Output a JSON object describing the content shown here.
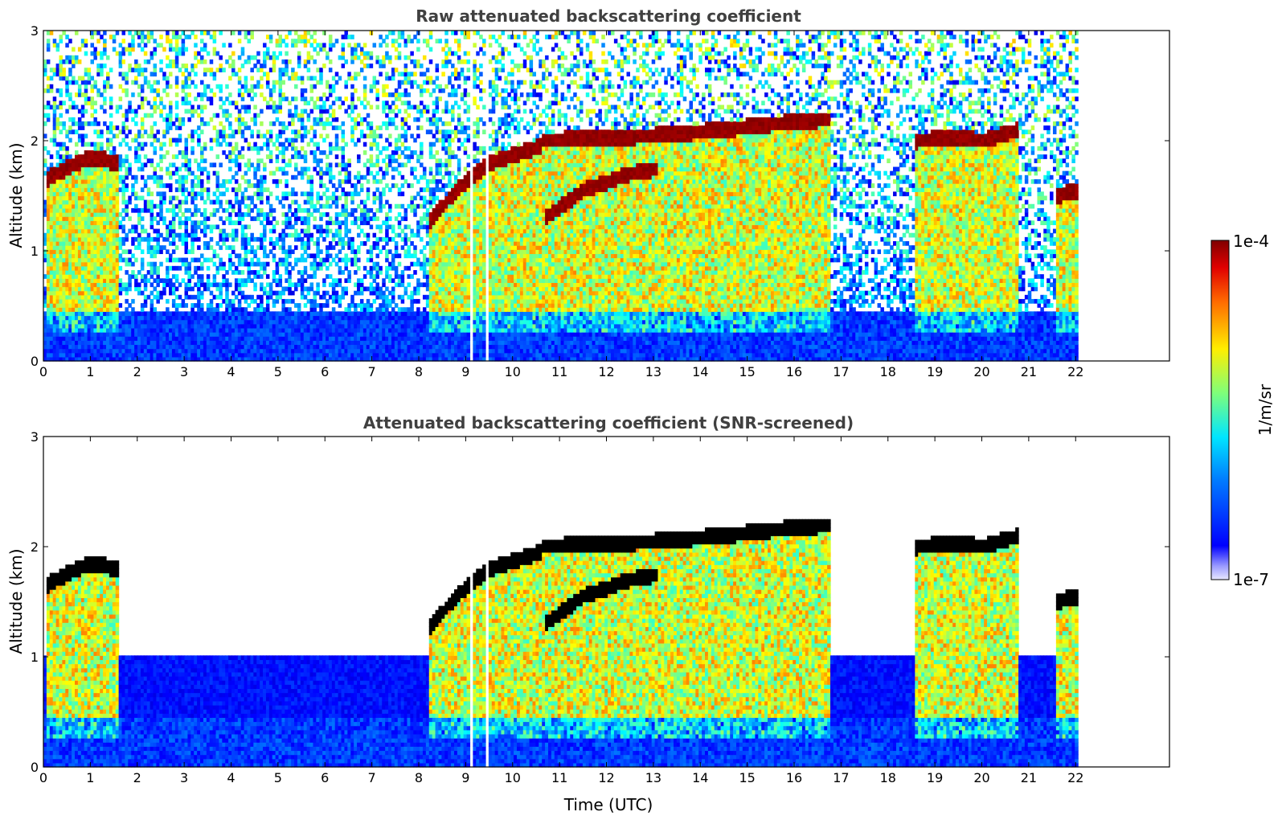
{
  "chart_data": [
    {
      "type": "heatmap",
      "title": "Raw attenuated backscattering coefficient",
      "xlabel": "",
      "ylabel": "Altitude (km)",
      "xlim": [
        0,
        24
      ],
      "ylim": [
        0,
        3
      ],
      "xticks": [
        "0",
        "1",
        "2",
        "3",
        "4",
        "5",
        "6",
        "7",
        "8",
        "9",
        "10",
        "11",
        "12",
        "13",
        "14",
        "15",
        "16",
        "17",
        "18",
        "19",
        "20",
        "21",
        "22"
      ],
      "yticks": [
        "0",
        "1",
        "2",
        "3"
      ],
      "data_end_time": 22.05,
      "gaps": [
        [
          9.1,
          9.14
        ],
        [
          9.4,
          9.5
        ]
      ],
      "cloud_layers": [
        {
          "t": [
            0.05,
            0.5,
            1.0,
            1.6
          ],
          "alt": [
            1.65,
            1.75,
            1.85,
            1.8
          ]
        },
        {
          "t": [
            8.2,
            8.8,
            9.5,
            10.6
          ],
          "alt": [
            1.25,
            1.55,
            1.8,
            1.95
          ]
        },
        {
          "t": [
            10.6,
            11.5,
            12.3,
            13.1
          ],
          "alt": [
            2.0,
            2.02,
            2.03,
            2.05
          ]
        },
        {
          "t": [
            10.7,
            11.5,
            12.5,
            13.1
          ],
          "alt": [
            1.3,
            1.55,
            1.7,
            1.75
          ]
        },
        {
          "t": [
            13.1,
            14.5,
            15.5,
            16.8
          ],
          "alt": [
            2.05,
            2.1,
            2.15,
            2.2
          ]
        },
        {
          "t": [
            18.6,
            19.5,
            20.0,
            20.8
          ],
          "alt": [
            2.0,
            2.03,
            2.0,
            2.1
          ]
        },
        {
          "t": [
            21.6,
            22.05
          ],
          "alt": [
            1.5,
            1.55
          ]
        }
      ],
      "aerosol_layer_top_km": 0.5,
      "noise_level": "high"
    },
    {
      "type": "heatmap",
      "title": "Attenuated backscattering coefficient (SNR-screened)",
      "xlabel": "Time (UTC)",
      "ylabel": "Altitude (km)",
      "xlim": [
        0,
        24
      ],
      "ylim": [
        0,
        3
      ],
      "xticks": [
        "0",
        "1",
        "2",
        "3",
        "4",
        "5",
        "6",
        "7",
        "8",
        "9",
        "10",
        "11",
        "12",
        "13",
        "14",
        "15",
        "16",
        "17",
        "18",
        "19",
        "20",
        "21",
        "22"
      ],
      "yticks": [
        "0",
        "1",
        "2",
        "3"
      ],
      "data_end_time": 22.05,
      "gaps": [
        [
          9.1,
          9.14
        ],
        [
          9.4,
          9.5
        ]
      ],
      "screened_aerosol_top_km": 1.0,
      "noise_level": "screened"
    }
  ],
  "colorbar": {
    "label": "1/m/sr",
    "max_label": "1e-4",
    "min_label": "1e-7",
    "colormap": "jet",
    "scale": "log",
    "range": [
      1e-07,
      0.0001
    ]
  }
}
